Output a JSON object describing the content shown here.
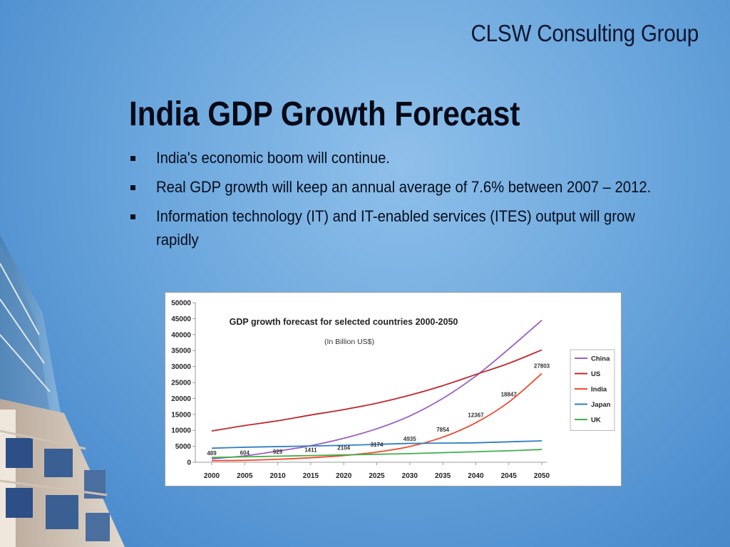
{
  "org": "CLSW Consulting Group",
  "title": "India GDP Growth Forecast",
  "bullets": [
    "India's economic boom will continue.",
    "Real GDP growth will keep an annual average of 7.6% between  2007 – 2012.",
    "Information technology (IT) and IT-enabled services (ITES) output will grow rapidly"
  ],
  "chart_data": {
    "type": "line",
    "title": "GDP growth forecast for selected countries 2000-2050",
    "subtitle": "(In Billion US$)",
    "xlabel": "",
    "ylabel": "",
    "x": [
      2000,
      2005,
      2010,
      2015,
      2020,
      2025,
      2030,
      2035,
      2040,
      2045,
      2050
    ],
    "x_tick_labels": [
      "2000",
      "2005",
      "2010",
      "2015",
      "2020",
      "2025",
      "2030",
      "2035",
      "2040",
      "2045",
      "2050"
    ],
    "ylim": [
      0,
      50000
    ],
    "y_ticks": [
      0,
      5000,
      10000,
      15000,
      20000,
      25000,
      30000,
      35000,
      40000,
      45000,
      50000
    ],
    "y_tick_labels": [
      "0",
      "5000",
      "10000",
      "15000",
      "20000",
      "25000",
      "30000",
      "35000",
      "40000",
      "45000",
      "50000"
    ],
    "grid": false,
    "legend_position": "right",
    "series": [
      {
        "name": "China",
        "color": "#9a5fc0",
        "values": [
          1078,
          2000,
          3500,
          5200,
          7500,
          10500,
          14500,
          20000,
          27000,
          35500,
          44500
        ]
      },
      {
        "name": "US",
        "color": "#c0282d",
        "values": [
          9800,
          11500,
          13000,
          14800,
          16500,
          18500,
          21000,
          24000,
          27500,
          31000,
          35200
        ]
      },
      {
        "name": "India",
        "color": "#f04a2f",
        "values": [
          489,
          604,
          929,
          1411,
          2104,
          3174,
          4935,
          7854,
          12367,
          18847,
          27803
        ]
      },
      {
        "name": "Japan",
        "color": "#2f7fc1",
        "values": [
          4400,
          4700,
          4900,
          5100,
          5300,
          5600,
          5900,
          6000,
          6100,
          6400,
          6700
        ]
      },
      {
        "name": "UK",
        "color": "#3fb04a",
        "values": [
          1500,
          1700,
          1900,
          2100,
          2300,
          2500,
          2700,
          3000,
          3300,
          3600,
          4000
        ]
      }
    ],
    "data_labels": {
      "series": "India",
      "labels": [
        "489",
        "604",
        "929",
        "1411",
        "2104",
        "3174",
        "4935",
        "7854",
        "12367",
        "18847",
        "27803"
      ]
    }
  }
}
